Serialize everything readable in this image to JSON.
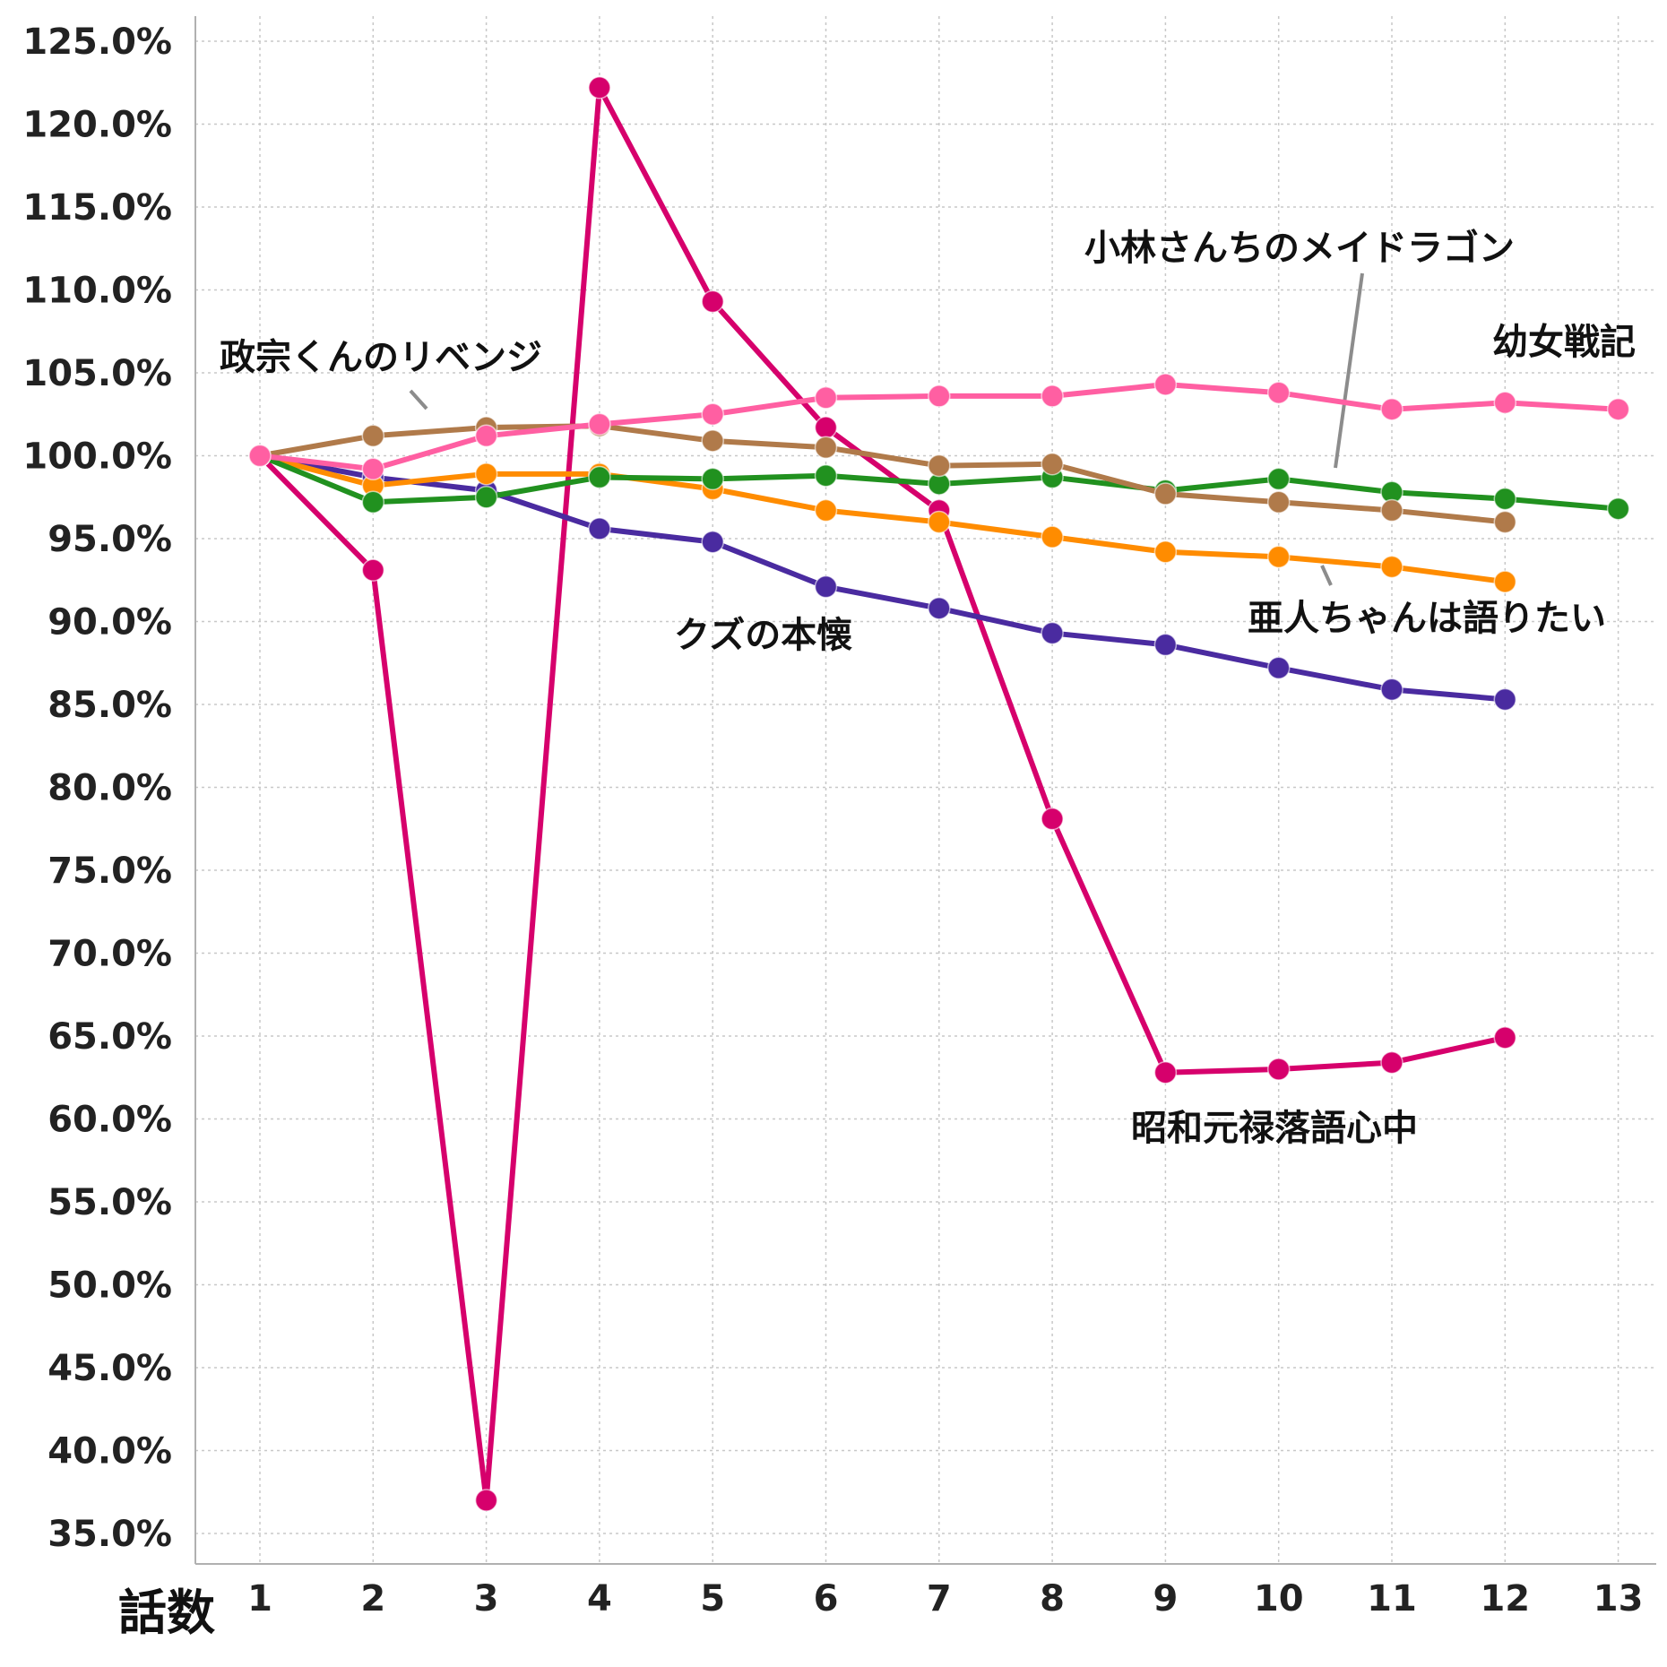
{
  "chart_data": {
    "type": "line",
    "xlabel": "話数",
    "ylabel": "",
    "x": [
      1,
      2,
      3,
      4,
      5,
      6,
      7,
      8,
      9,
      10,
      11,
      12,
      13
    ],
    "ylim": [
      35,
      125
    ],
    "yticks": [
      35,
      40,
      45,
      50,
      55,
      60,
      65,
      70,
      75,
      80,
      85,
      90,
      95,
      100,
      105,
      110,
      115,
      120,
      125
    ],
    "ytick_labels": [
      "35.0%",
      "40.0%",
      "45.0%",
      "50.0%",
      "55.0%",
      "60.0%",
      "65.0%",
      "70.0%",
      "75.0%",
      "80.0%",
      "85.0%",
      "90.0%",
      "95.0%",
      "100.0%",
      "105.0%",
      "110.0%",
      "115.0%",
      "120.0%",
      "125.0%"
    ],
    "grid": true,
    "series": [
      {
        "name": "昭和元禄落語心中",
        "color": "#d6006c",
        "values": [
          100,
          93.1,
          37.0,
          122.2,
          109.3,
          101.7,
          96.7,
          78.1,
          62.8,
          63.0,
          63.4,
          64.9,
          null
        ]
      },
      {
        "name": "クズの本懐",
        "color": "#4a2ba0",
        "values": [
          100,
          98.7,
          97.9,
          95.6,
          94.8,
          92.1,
          90.8,
          89.3,
          88.6,
          87.2,
          85.9,
          85.3,
          null
        ]
      },
      {
        "name": "亜人ちゃんは語りたい",
        "color": "#ff8c00",
        "values": [
          100,
          98.2,
          98.9,
          98.9,
          98.0,
          96.7,
          96.0,
          95.1,
          94.2,
          93.9,
          93.3,
          92.4,
          null
        ]
      },
      {
        "name": "小林さんちのメイドラゴン",
        "color": "#21911f",
        "values": [
          100,
          97.2,
          97.5,
          98.7,
          98.6,
          98.8,
          98.3,
          98.7,
          97.9,
          98.6,
          97.8,
          97.4,
          96.8
        ]
      },
      {
        "name": "政宗くんのリベンジ",
        "color": "#b07a4a",
        "values": [
          100,
          101.2,
          101.7,
          101.8,
          100.9,
          100.5,
          99.4,
          99.5,
          97.7,
          97.2,
          96.7,
          96.0,
          null
        ]
      },
      {
        "name": "幼女戦記",
        "color": "#ff5fa2",
        "values": [
          100,
          99.2,
          101.2,
          101.9,
          102.5,
          103.5,
          103.6,
          103.6,
          104.3,
          103.8,
          102.8,
          103.2,
          102.8
        ]
      }
    ],
    "annotations": [
      {
        "text": "政宗くんのリベンジ",
        "series": "政宗くんのリベンジ"
      },
      {
        "text": "小林さんちのメイドラゴン",
        "series": "小林さんちのメイドラゴン"
      },
      {
        "text": "幼女戦記",
        "series": "幼女戦記"
      },
      {
        "text": "クズの本懐",
        "series": "クズの本懐"
      },
      {
        "text": "亜人ちゃんは語りたい",
        "series": "亜人ちゃんは語りたい"
      },
      {
        "text": "昭和元禄落語心中",
        "series": "昭和元禄落語心中"
      }
    ]
  }
}
